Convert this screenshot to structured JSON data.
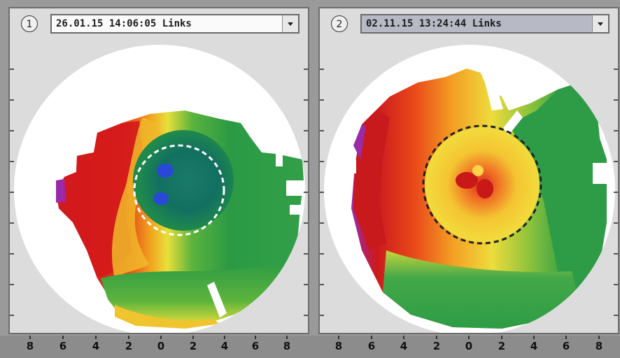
{
  "panels": [
    {
      "number": "1",
      "selected_value": "26.01.15 14:06:05 Links"
    },
    {
      "number": "2",
      "selected_value": "02.11.15 13:24:44 Links"
    }
  ],
  "axis": {
    "panel_1_labels": [
      "8",
      "6",
      "4",
      "2",
      "0",
      "2",
      "4",
      "6",
      "8"
    ],
    "panel_2_labels": [
      "8",
      "6",
      "4",
      "2",
      "0",
      "2",
      "4",
      "6",
      "8"
    ]
  },
  "colors": {
    "red": "#d51818",
    "orange": "#f08a1c",
    "yellow": "#f2e43a",
    "green": "#2ea043",
    "dark_teal": "#0f6f63",
    "blue": "#2a48d8",
    "purple": "#9a2aa8"
  }
}
